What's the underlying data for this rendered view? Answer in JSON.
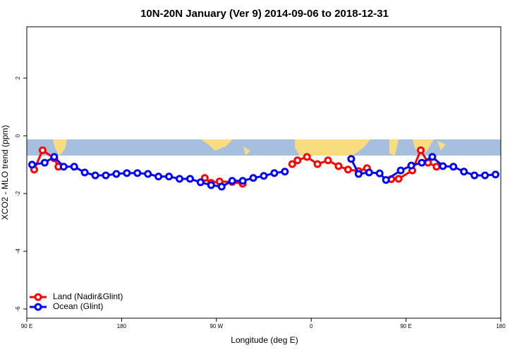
{
  "chart_data": {
    "type": "line",
    "title": "10N-20N January (Ver 9)   2014-09-06 to 2018-12-31",
    "x_label": "Longitude (deg E)",
    "y_label": "XCO2 - MLO trend (ppm)",
    "xlim": [
      90,
      540
    ],
    "ylim": [
      -6.32,
      3.78
    ],
    "xticks": [
      {
        "value": 90,
        "label": "90 E"
      },
      180,
      {
        "value": 270,
        "label": "90 W"
      },
      {
        "value": 360,
        "label": "0"
      },
      {
        "value": 450,
        "label": "90 E"
      },
      {
        "value": 540,
        "label": "180"
      }
    ],
    "yticks": [
      2,
      0,
      -2,
      -4,
      -6
    ],
    "legend": "bottom-left",
    "series": [
      {
        "name": "Land (Nadir&Glint)",
        "color": "#ff0000",
        "x": [
          97,
          105,
          116,
          120,
          null,
          259,
          265,
          273,
          285,
          295,
          null,
          342,
          347,
          356,
          366,
          376,
          386,
          395,
          405,
          413,
          null,
          436,
          443,
          456,
          464,
          471,
          479
        ],
        "values": [
          -1.17,
          -0.5,
          -0.78,
          -1.07,
          null,
          -1.46,
          -1.63,
          -1.58,
          -1.6,
          -1.66,
          null,
          -0.98,
          -0.85,
          -0.73,
          -0.98,
          -0.85,
          -1.05,
          -1.17,
          -1.22,
          -1.12,
          null,
          -1.5,
          -1.49,
          -1.2,
          -0.5,
          -0.93,
          -1.07
        ]
      },
      {
        "name": "Ocean (Glint)",
        "color": "#0000ff",
        "x": [
          95,
          107,
          116,
          125,
          135,
          145,
          155,
          165,
          175,
          185,
          195,
          205,
          215,
          225,
          235,
          245,
          255,
          265,
          275,
          285,
          295,
          305,
          315,
          325,
          335,
          null,
          398,
          405,
          415,
          425,
          431,
          445,
          455,
          465,
          475,
          485,
          495,
          505,
          515,
          525,
          535
        ],
        "values": [
          -1.0,
          -0.93,
          -0.73,
          -1.07,
          -1.07,
          -1.27,
          -1.37,
          -1.37,
          -1.32,
          -1.29,
          -1.29,
          -1.32,
          -1.41,
          -1.41,
          -1.49,
          -1.49,
          -1.61,
          -1.71,
          -1.76,
          -1.56,
          -1.56,
          -1.46,
          -1.39,
          -1.29,
          -1.24,
          null,
          -0.8,
          -1.32,
          -1.27,
          -1.3,
          -1.53,
          -1.2,
          -1.03,
          -0.93,
          -0.73,
          -1.05,
          -1.07,
          -1.24,
          -1.37,
          -1.37,
          -1.34
        ]
      }
    ]
  }
}
